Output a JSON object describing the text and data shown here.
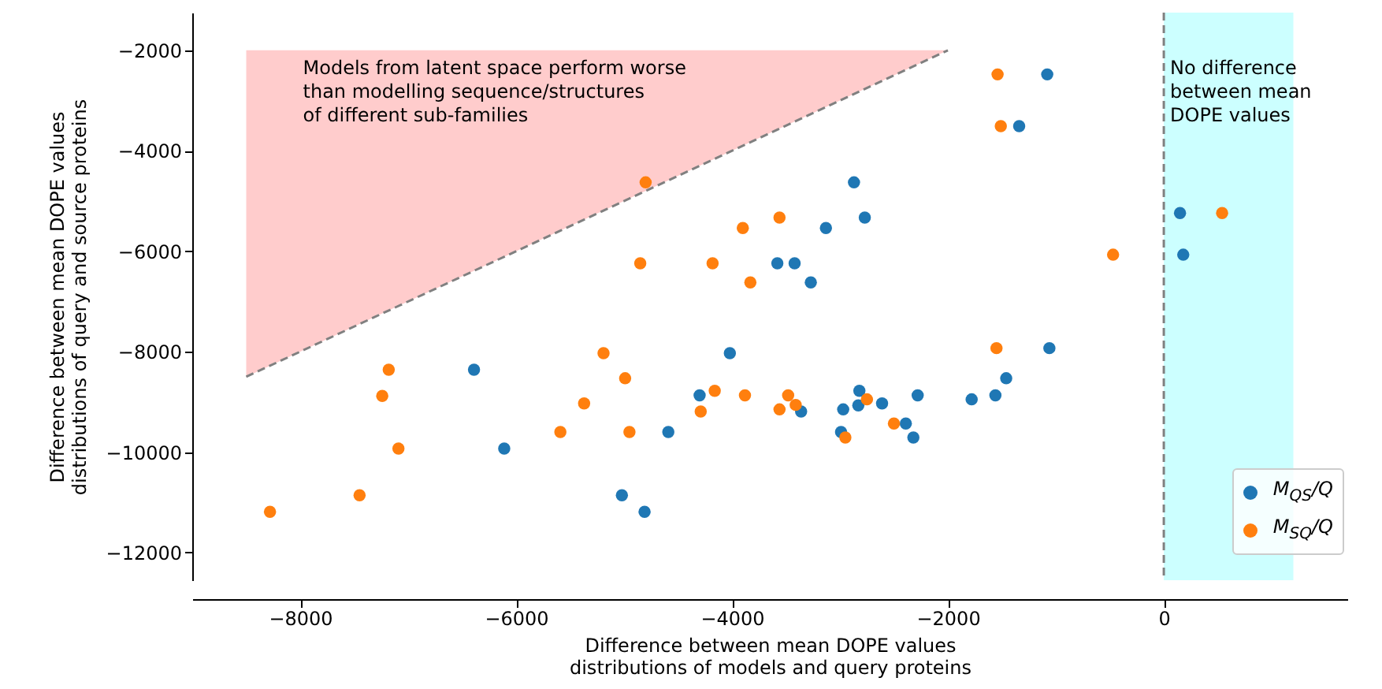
{
  "chart_data": {
    "type": "scatter",
    "xlabel": "Difference between mean DOPE values\ndistributions of models and query proteins",
    "ylabel": "Difference between mean DOPE values\ndistributions of query and source proteins",
    "xlim": [
      -9000,
      1700
    ],
    "ylim": [
      -12550,
      -1250
    ],
    "xticks": [
      -8000,
      -6000,
      -4000,
      -2000,
      0
    ],
    "yticks": [
      -12000,
      -10000,
      -8000,
      -6000,
      -4000,
      -2000
    ],
    "legend": "bottom right",
    "series": [
      {
        "name": "M$_{QS}$/Q",
        "color": "#1f77b4",
        "marker": "circle",
        "x": [
          -6390,
          -6110,
          -2870,
          -2770,
          -3130,
          -3580,
          -3420,
          -3270,
          -4020,
          -4300,
          -3360,
          -4590,
          -2820,
          -2970,
          -2830,
          -2610,
          -2280,
          -2390,
          -2990,
          -2320,
          -5020,
          -4810,
          -1780,
          -1080,
          -1340,
          150,
          180,
          -1060,
          -1460,
          -1560
        ],
        "values": [
          -8360,
          -9930,
          -4630,
          -5330,
          -5540,
          -6240,
          -6240,
          -6620,
          -8030,
          -8870,
          -9190,
          -9600,
          -8780,
          -9150,
          -9070,
          -9030,
          -8870,
          -9430,
          -9600,
          -9710,
          -10860,
          -11190,
          -8950,
          -2480,
          -3510,
          -5240,
          -6070,
          -7930,
          -8530,
          -8870
        ]
      },
      {
        "name": "M$_{SQ}$/Q",
        "color": "#ff7f0e",
        "marker": "circle",
        "x": [
          -7180,
          -7240,
          -7090,
          -5590,
          -5370,
          -7450,
          -8280,
          -4800,
          -3560,
          -3900,
          -4850,
          -4180,
          -3830,
          -5190,
          -4990,
          -4160,
          -3880,
          -3480,
          -4290,
          -3560,
          -3410,
          -4950,
          -2750,
          -2500,
          -2950,
          -1540,
          -1510,
          540,
          -470,
          -1550
        ],
        "values": [
          -8360,
          -8880,
          -9930,
          -9600,
          -9030,
          -10860,
          -11190,
          -4630,
          -5330,
          -5540,
          -6240,
          -6240,
          -6620,
          -8030,
          -8530,
          -8780,
          -8870,
          -8870,
          -9190,
          -9150,
          -9060,
          -9600,
          -8950,
          -9430,
          -9710,
          -2480,
          -3510,
          -5240,
          -6070,
          -7930
        ]
      },
      {
        "type": "line",
        "color": "#808080",
        "line_style": "dashed",
        "x": [
          -8500,
          -2000
        ],
        "values": [
          -8500,
          -2000
        ],
        "lower": [
          -8500,
          -2000
        ],
        "upper": [
          -2000,
          -2000
        ]
      }
    ],
    "bands": [
      {
        "axis": "x",
        "from": 0,
        "to": 1200,
        "color": "#ccffff"
      }
    ],
    "ref_lines": [
      {
        "axis": "x",
        "value": 0,
        "color": "#808080",
        "line_style": "dashed"
      }
    ],
    "annotations": [
      "Models from latent space perform worse\nthan modelling sequence/structures\nof different sub-families",
      "No difference\nbetween mean\nDOPE values"
    ]
  }
}
